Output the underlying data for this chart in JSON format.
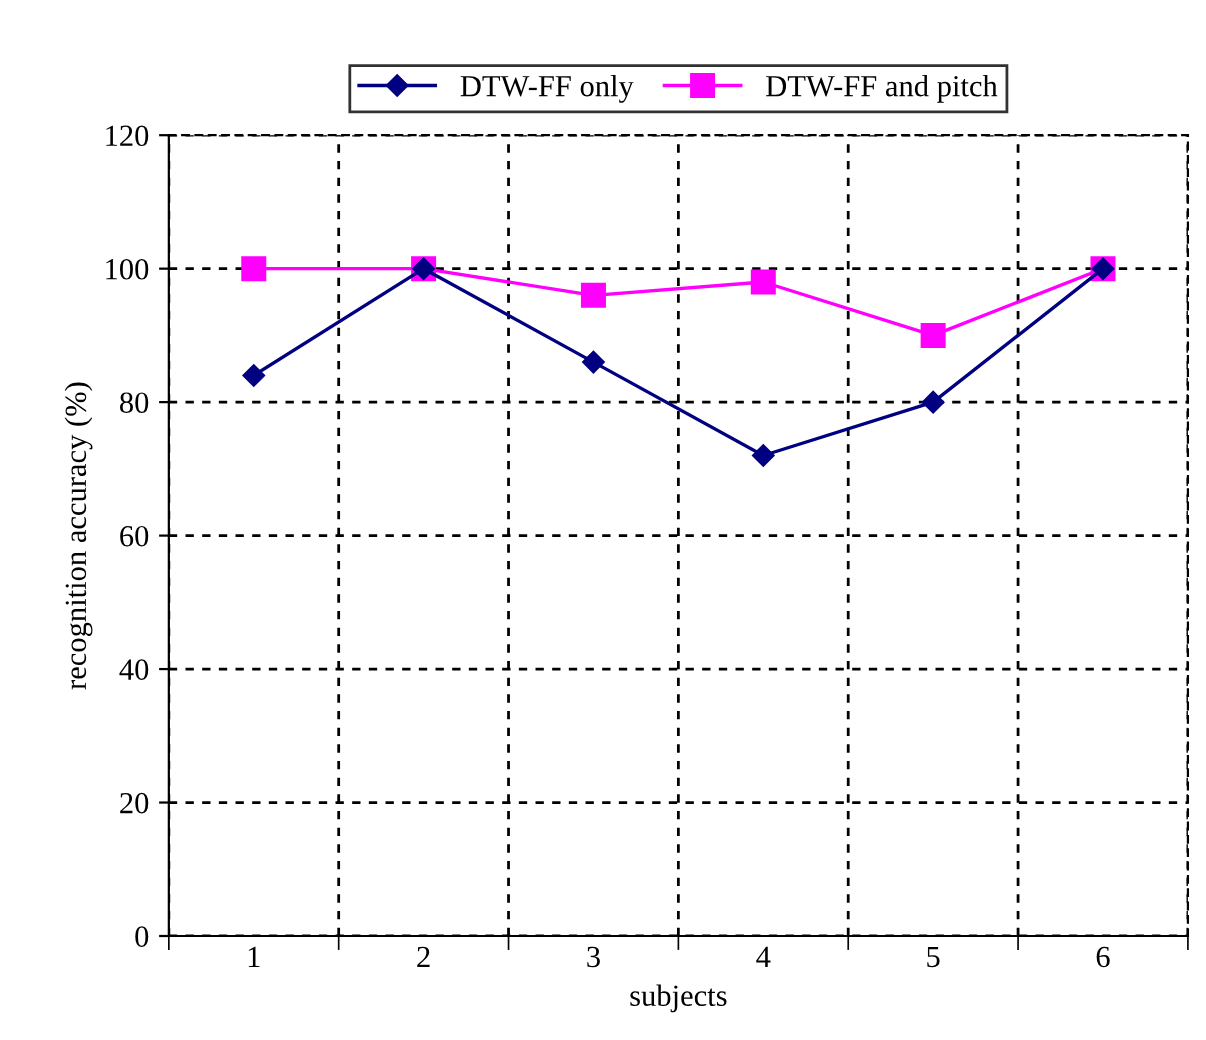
{
  "chart_data": {
    "type": "line",
    "xlabel": "subjects",
    "ylabel": "recognition accuracy (%)",
    "categories": [
      "1",
      "2",
      "3",
      "4",
      "5",
      "6"
    ],
    "series": [
      {
        "name": "DTW-FF only",
        "color": "#000080",
        "marker": "diamond",
        "values": [
          84,
          100,
          86,
          72,
          80,
          100
        ]
      },
      {
        "name": "DTW-FF and pitch",
        "color": "#ff00ff",
        "marker": "square",
        "values": [
          100,
          100,
          96,
          98,
          90,
          100
        ]
      }
    ],
    "ylim": [
      0,
      120
    ],
    "yticks": [
      0,
      20,
      40,
      60,
      80,
      100,
      120
    ],
    "grid": true,
    "legend": "top",
    "line_style": "solid"
  }
}
